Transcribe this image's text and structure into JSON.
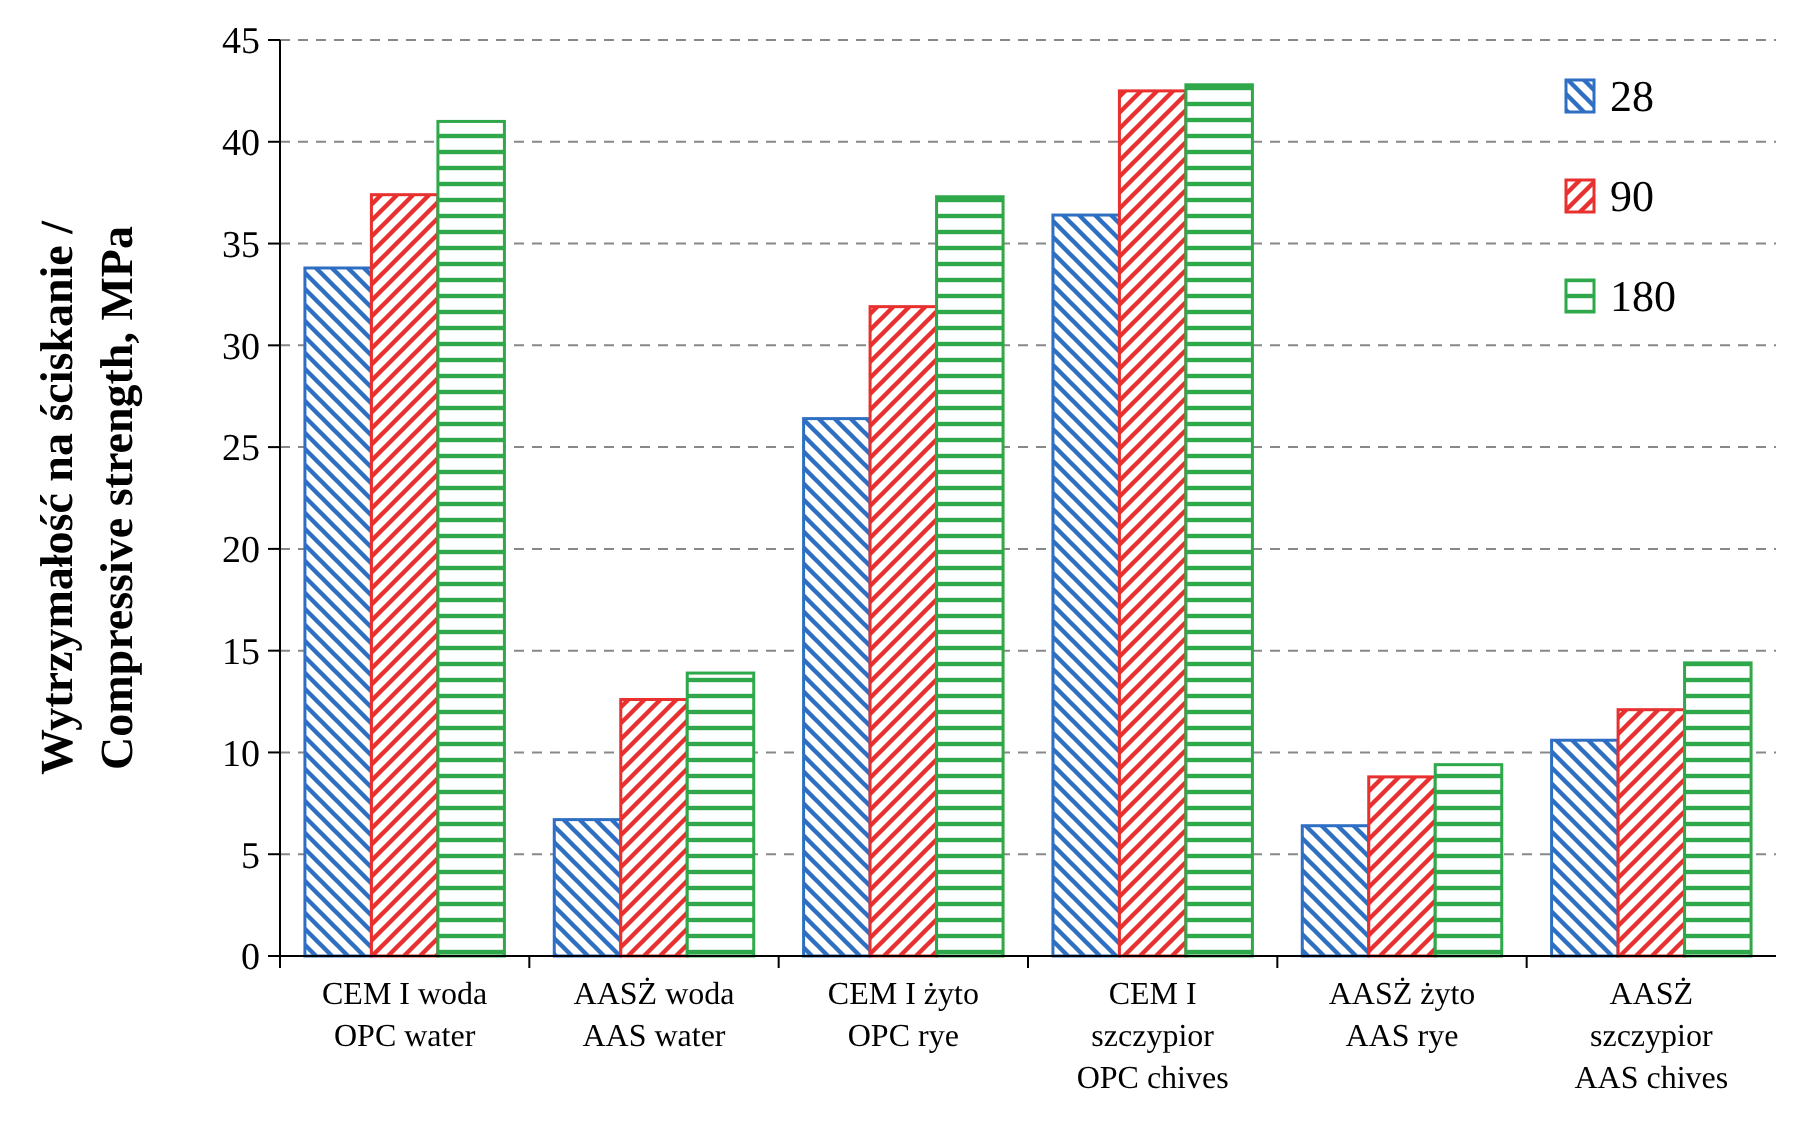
{
  "chart_data": {
    "type": "bar",
    "ylabel": "Wytrzymałość  na ściskanie /\nCompressive strength, MPa",
    "categories": [
      "CEM I woda\nOPC water",
      "AASŻ woda\nAAS water",
      "CEM I żyto\nOPC rye",
      "CEM I\nszczypior\nOPC chives",
      "AASŻ żyto\nAAS rye",
      "AASŻ\nszczypior\nAAS chives"
    ],
    "series": [
      {
        "name": "28",
        "color": "#2e6fc4",
        "values": [
          33.8,
          6.7,
          26.4,
          36.4,
          6.4,
          10.6
        ]
      },
      {
        "name": "90",
        "color": "#e8302e",
        "values": [
          37.4,
          12.6,
          31.9,
          42.5,
          8.8,
          12.1
        ]
      },
      {
        "name": "180",
        "color": "#2ea84a",
        "values": [
          41.0,
          13.9,
          37.3,
          42.8,
          9.4,
          14.4
        ]
      }
    ],
    "ylim": [
      0,
      45
    ],
    "yticks": [
      0,
      5,
      10,
      15,
      20,
      25,
      30,
      35,
      40,
      45
    ],
    "grid": "y",
    "legend": "top right"
  }
}
